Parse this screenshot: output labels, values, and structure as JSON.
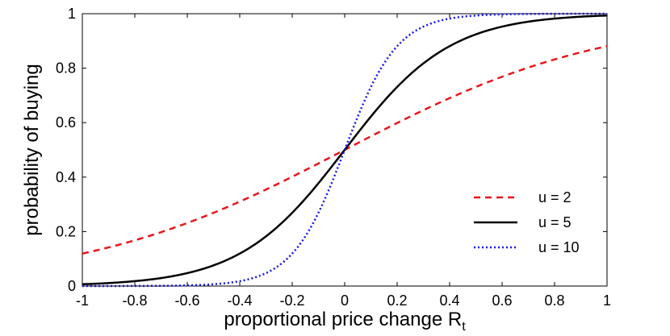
{
  "chart_data": {
    "type": "line",
    "title": "",
    "xlabel": "proportional price change R",
    "xlabel_subscript": "t",
    "ylabel": "probability of buying",
    "xlim": [
      -1,
      1
    ],
    "ylim": [
      0,
      1
    ],
    "grid": false,
    "legend_position": "bottom-right",
    "x_ticks": [
      -1,
      -0.8,
      -0.6,
      -0.4,
      -0.2,
      0,
      0.2,
      0.4,
      0.6,
      0.8,
      1
    ],
    "x_tick_labels": [
      "-1",
      "-0.8",
      "-0.6",
      "-0.4",
      "-0.2",
      "0",
      "0.2",
      "0.4",
      "0.6",
      "0.8",
      "1"
    ],
    "y_ticks": [
      0,
      0.2,
      0.4,
      0.6,
      0.8,
      1
    ],
    "y_tick_labels": [
      "0",
      "0.2",
      "0.4",
      "0.6",
      "0.8",
      "1"
    ],
    "x": [
      -1,
      -0.9,
      -0.8,
      -0.7,
      -0.6,
      -0.5,
      -0.4,
      -0.3,
      -0.2,
      -0.1,
      0,
      0.1,
      0.2,
      0.3,
      0.4,
      0.5,
      0.6,
      0.7,
      0.8,
      0.9,
      1
    ],
    "series": [
      {
        "name": "u = 2",
        "color": "#e8161b",
        "line_style": "dashed",
        "values": [
          0.119,
          0.142,
          0.168,
          0.198,
          0.231,
          0.269,
          0.31,
          0.354,
          0.401,
          0.45,
          0.5,
          0.55,
          0.599,
          0.646,
          0.69,
          0.731,
          0.769,
          0.802,
          0.832,
          0.858,
          0.881
        ]
      },
      {
        "name": "u = 5",
        "color": "#000000",
        "line_style": "solid",
        "values": [
          0.007,
          0.011,
          0.018,
          0.029,
          0.047,
          0.076,
          0.119,
          0.182,
          0.269,
          0.378,
          0.5,
          0.622,
          0.731,
          0.818,
          0.881,
          0.924,
          0.953,
          0.971,
          0.982,
          0.989,
          0.993
        ]
      },
      {
        "name": "u = 10",
        "color": "#1717e6",
        "line_style": "dotted",
        "values": [
          0.0,
          0.0,
          0.0,
          0.001,
          0.002,
          0.007,
          0.018,
          0.047,
          0.119,
          0.269,
          0.5,
          0.731,
          0.881,
          0.953,
          0.982,
          0.993,
          0.998,
          0.999,
          1.0,
          1.0,
          1.0
        ]
      }
    ]
  }
}
